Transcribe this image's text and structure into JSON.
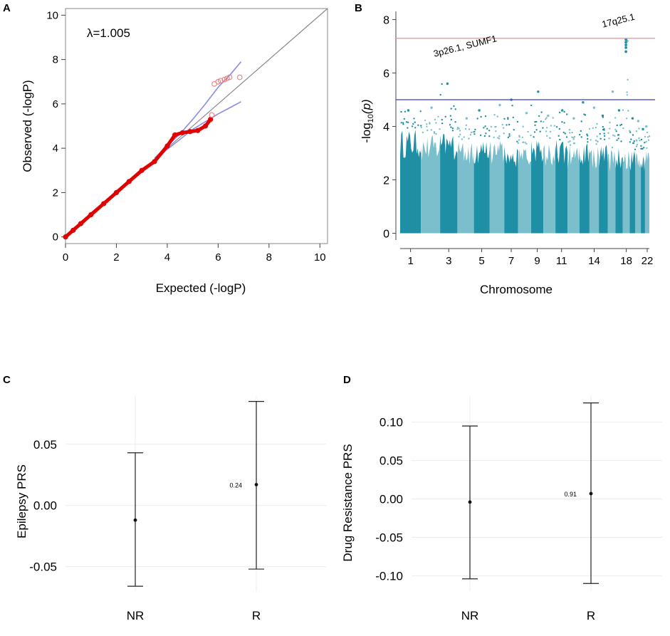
{
  "figure": {
    "panel_labels": [
      "A",
      "B",
      "C",
      "D"
    ]
  },
  "colors": {
    "qq_points": "#e00000",
    "qq_ci": "#8c8ce6",
    "identity_line": "#8a8a8a",
    "manhattan_dark": "#1f8fa6",
    "manhattan_light": "#7cbfcc",
    "genomewide_line": "#f0a0a0",
    "suggestive_line": "#3c3cc8",
    "grid": "#ececec"
  },
  "chart_data": [
    {
      "panel": "A",
      "type": "scatter",
      "title": "",
      "xlabel": "Expected (-logP)",
      "ylabel": "Observed (-logP)",
      "xlim": [
        0,
        10.3
      ],
      "ylim": [
        -0.3,
        10.3
      ],
      "xticks": [
        "0",
        "2",
        "4",
        "6",
        "8",
        "10"
      ],
      "yticks": [
        "0",
        "2",
        "4",
        "6",
        "8",
        "10"
      ],
      "annotation": "λ=1.005",
      "series": [
        {
          "name": "observed",
          "x": [
            0.0,
            0.3,
            0.6,
            1.0,
            1.5,
            2.0,
            2.5,
            3.0,
            3.5,
            4.0,
            4.3,
            4.6,
            4.9,
            5.2,
            5.5,
            5.7
          ],
          "y": [
            0.0,
            0.3,
            0.6,
            1.0,
            1.5,
            2.0,
            2.5,
            3.0,
            3.4,
            4.1,
            4.6,
            4.7,
            4.75,
            4.8,
            5.0,
            5.3
          ]
        },
        {
          "name": "outliers",
          "x": [
            5.85,
            6.0,
            6.1,
            6.25,
            6.35,
            6.45,
            6.85,
            5.75
          ],
          "y": [
            6.9,
            7.0,
            7.05,
            7.1,
            7.15,
            7.2,
            7.2,
            5.5
          ]
        },
        {
          "name": "ci_upper",
          "x": [
            3.5,
            4.0,
            4.5,
            5.0,
            5.5,
            6.0,
            6.5,
            6.9
          ],
          "y": [
            3.55,
            4.1,
            4.65,
            5.3,
            6.0,
            6.75,
            7.35,
            7.9
          ]
        },
        {
          "name": "ci_lower",
          "x": [
            3.5,
            4.0,
            4.5,
            5.0,
            5.5,
            6.0,
            6.5,
            6.9
          ],
          "y": [
            3.45,
            3.95,
            4.4,
            4.85,
            5.2,
            5.55,
            5.85,
            6.1
          ]
        }
      ]
    },
    {
      "panel": "B",
      "type": "scatter",
      "title": "",
      "xlabel": "Chromosome",
      "ylabel_main": "-log",
      "ylabel_sub": "10",
      "ylabel_tail": "(p)",
      "ylim": [
        -0.2,
        8.2
      ],
      "yticks": [
        "0",
        "2",
        "4",
        "6",
        "8"
      ],
      "chromosomes": [
        1,
        2,
        3,
        4,
        5,
        6,
        7,
        8,
        9,
        10,
        11,
        12,
        13,
        14,
        15,
        16,
        17,
        18,
        19,
        20,
        21,
        22
      ],
      "chrom_tick_labels": [
        "1",
        "3",
        "5",
        "7",
        "9",
        "11",
        "14",
        "18",
        "22"
      ],
      "chrom_tick_positions": [
        1,
        3,
        5,
        7,
        9,
        11,
        14,
        18,
        22
      ],
      "bulk_max": [
        3.9,
        3.7,
        3.8,
        3.5,
        3.6,
        3.5,
        3.4,
        3.3,
        3.5,
        3.4,
        3.5,
        3.3,
        3.4,
        3.3,
        3.4,
        3.2,
        3.3,
        3.2,
        3.1,
        3.2,
        3.0,
        3.1
      ],
      "peak": [
        4.6,
        4.7,
        5.6,
        4.3,
        4.6,
        4.8,
        5.0,
        4.5,
        5.3,
        4.4,
        4.6,
        4.3,
        4.9,
        4.7,
        4.4,
        5.3,
        4.6,
        7.2,
        4.3,
        4.2,
        3.9,
        4.0
      ],
      "genomewide_threshold": 7.3,
      "suggestive_threshold": 5.0,
      "annotations": [
        {
          "text": "3p26.1, SUMF1",
          "chrom": 3,
          "y": 6.6
        },
        {
          "text": "17q25.1",
          "chrom": 18,
          "y": 7.7
        }
      ]
    },
    {
      "panel": "C",
      "type": "errorbar",
      "title": "",
      "xlabel": "",
      "ylabel": "Epilepsy PRS",
      "categories": [
        "NR",
        "R"
      ],
      "ylim": [
        -0.07,
        0.09
      ],
      "yticks": [
        0.05,
        0.0,
        -0.05
      ],
      "ytick_labels": [
        "0.05",
        "0.00",
        "-0.05"
      ],
      "series": [
        {
          "name": "PRS",
          "values": [
            -0.012,
            0.017
          ],
          "lower": [
            -0.066,
            -0.052
          ],
          "upper": [
            0.043,
            0.085
          ]
        }
      ],
      "point_label": {
        "text": "0.24",
        "category": "R"
      }
    },
    {
      "panel": "D",
      "type": "errorbar",
      "title": "",
      "xlabel": "",
      "ylabel": "Drug Resistance PRS",
      "categories": [
        "NR",
        "R"
      ],
      "ylim": [
        -0.12,
        0.135
      ],
      "yticks": [
        0.1,
        0.05,
        0.0,
        -0.05,
        -0.1
      ],
      "ytick_labels": [
        "0.10",
        "0.05",
        "0.00",
        "-0.05",
        "-0.10"
      ],
      "series": [
        {
          "name": "PRS",
          "values": [
            -0.004,
            0.007
          ],
          "lower": [
            -0.104,
            -0.11
          ],
          "upper": [
            0.095,
            0.125
          ]
        }
      ],
      "point_label": {
        "text": "0.91",
        "category": "R"
      }
    }
  ]
}
